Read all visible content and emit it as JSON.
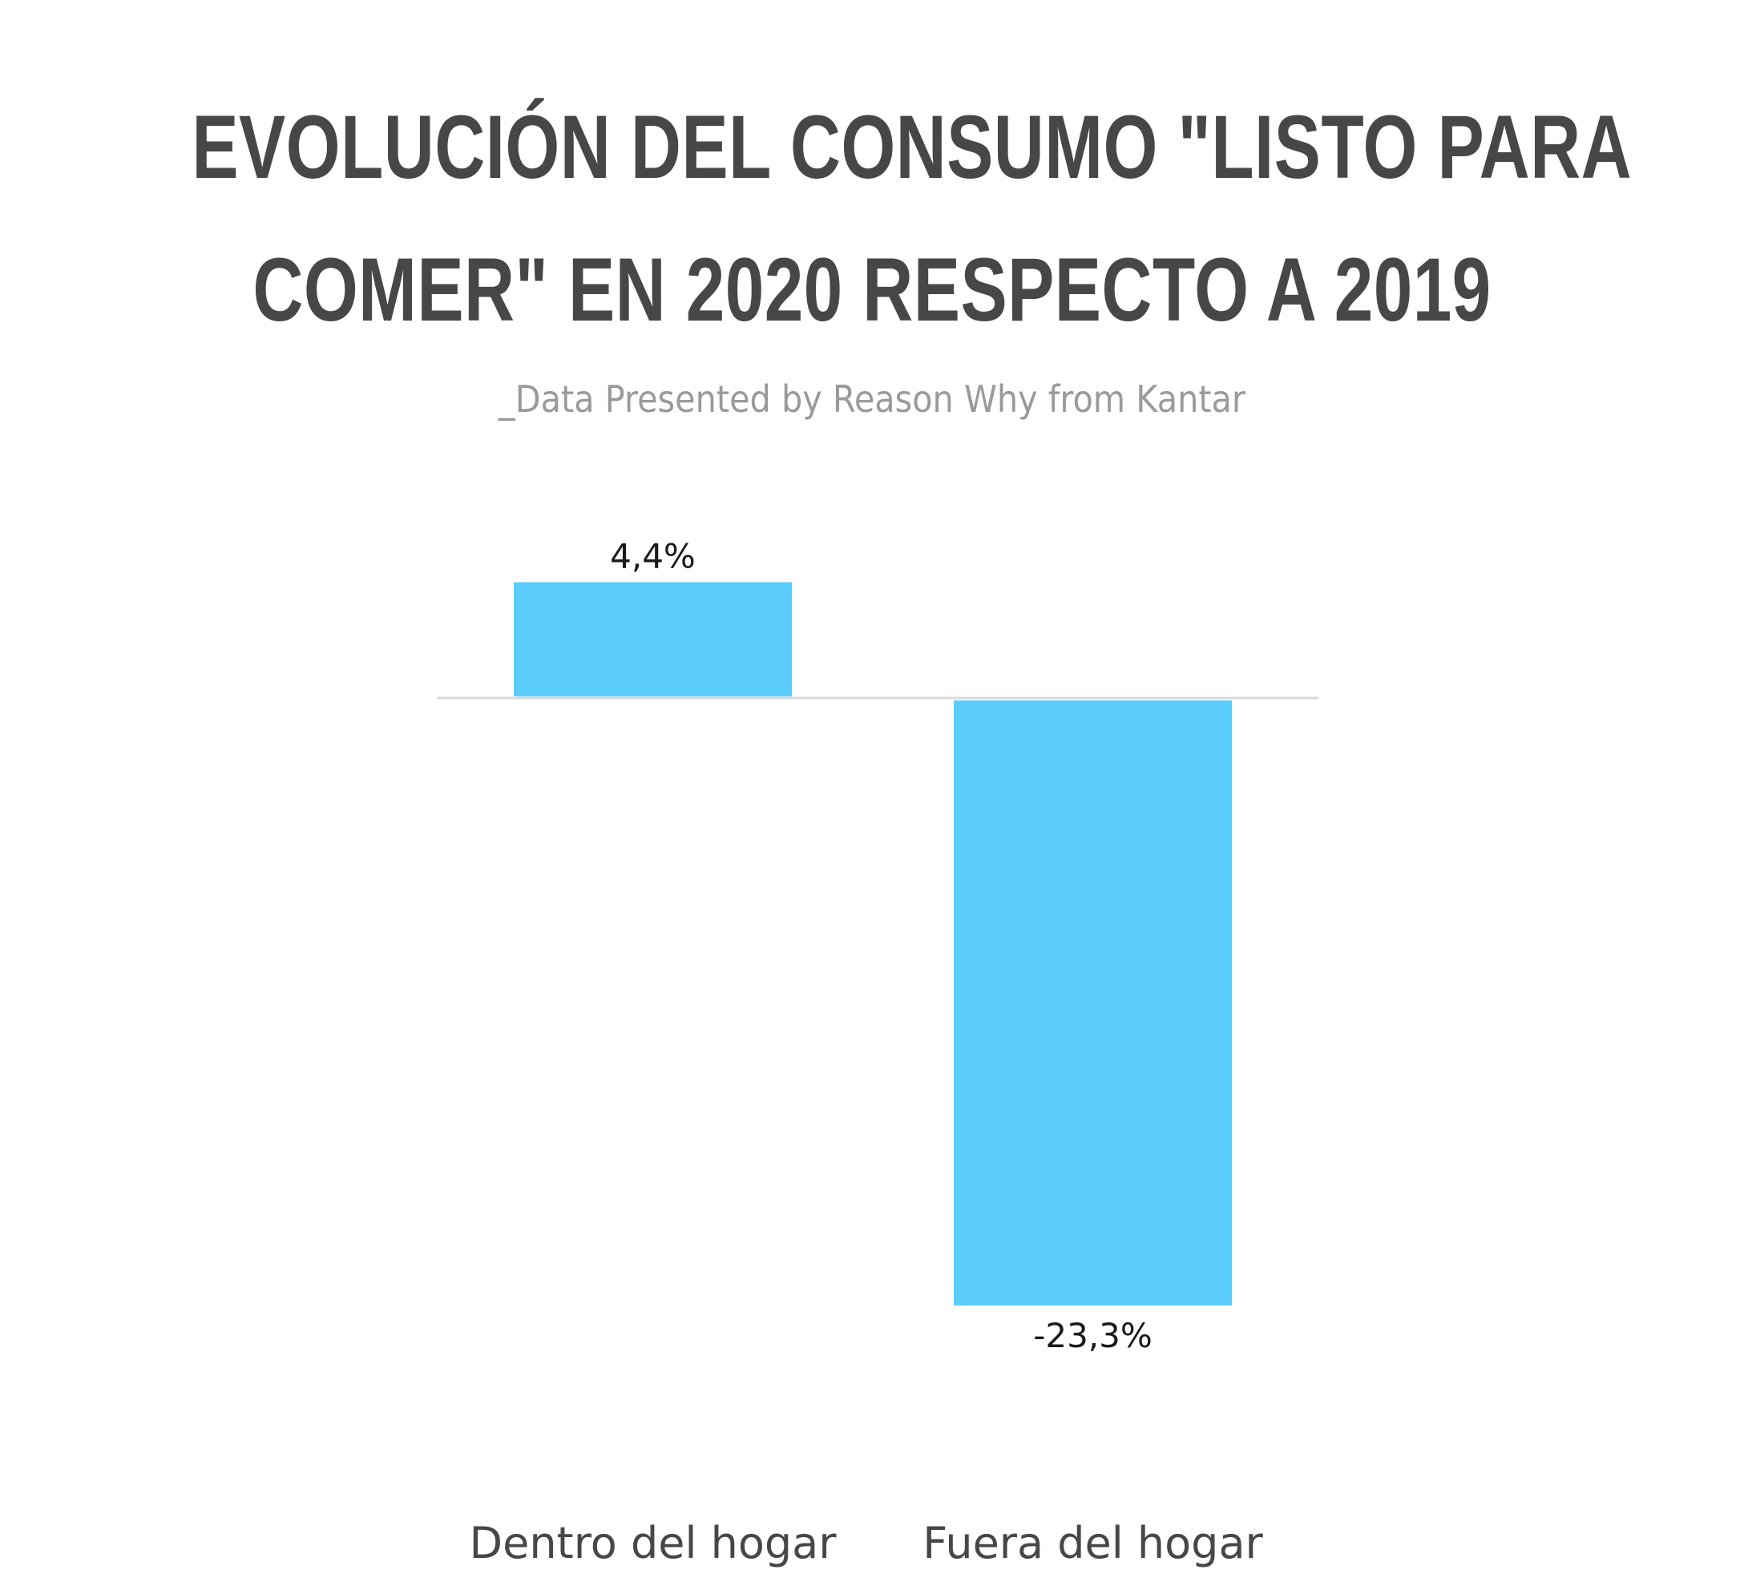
{
  "chart_data": {
    "type": "bar",
    "title_lines": [
      "EVOLUCIÓN DEL CONSUMO \"LISTO PARA",
      "COMER\" EN 2020 RESPECTO A 2019"
    ],
    "subtitle": "_Data Presented by Reason Why from Kantar",
    "categories": [
      "Dentro del hogar",
      "Fuera del hogar"
    ],
    "values": [
      4.4,
      -23.3
    ],
    "data_labels": [
      "4,4%",
      "-23,3%"
    ],
    "unit": "%",
    "grid": false,
    "legend": "none",
    "colors": {
      "bar": "#5bcdfd",
      "baseline": "#d9d9d9",
      "title": "#474747",
      "subtitle": "#9a9a9a"
    }
  }
}
